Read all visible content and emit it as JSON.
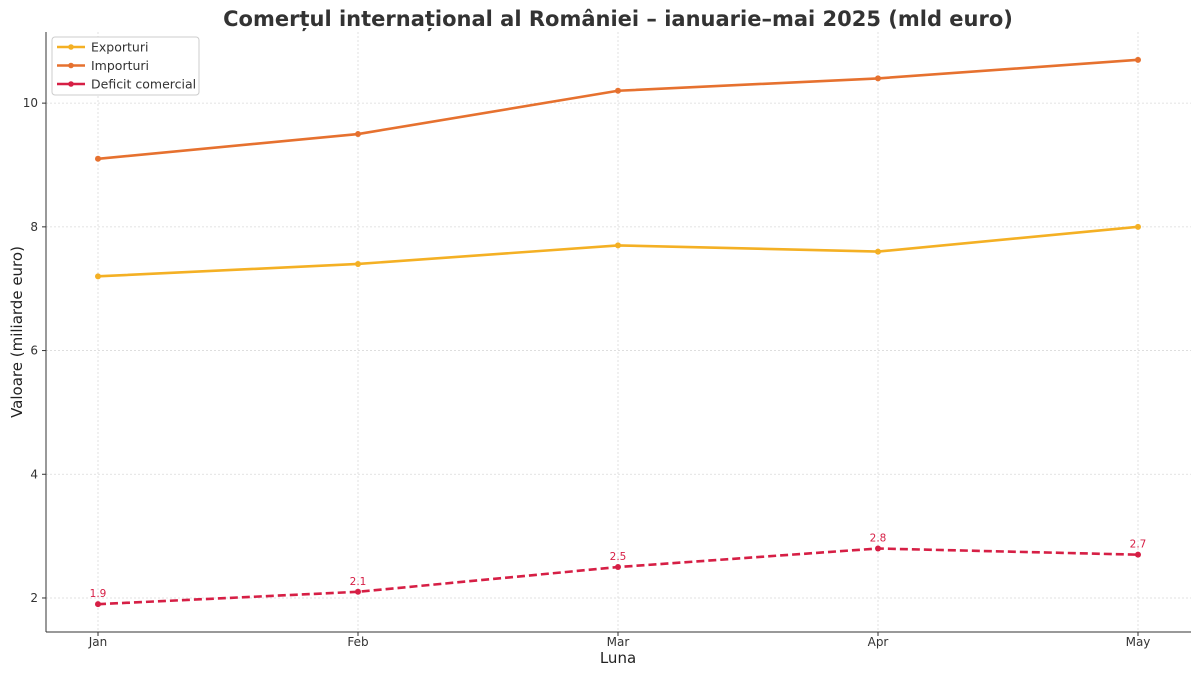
{
  "chart_data": {
    "type": "line",
    "title": "Comerțul internațional al României – ianuarie–mai 2025 (mld euro)",
    "xlabel": "Luna",
    "ylabel": "Valoare (miliarde euro)",
    "categories": [
      "Jan",
      "Feb",
      "Mar",
      "Apr",
      "May"
    ],
    "ylim": [
      1.45,
      11.15
    ],
    "yticks": [
      2,
      4,
      6,
      8,
      10
    ],
    "grid": true,
    "legend_position": "top-left",
    "series": [
      {
        "name": "Exporturi",
        "values": [
          7.2,
          7.4,
          7.7,
          7.6,
          8.0
        ],
        "color": "#f4b024",
        "dashed": false,
        "labels": false
      },
      {
        "name": "Importuri",
        "values": [
          9.1,
          9.5,
          10.2,
          10.4,
          10.7
        ],
        "color": "#e6712f",
        "dashed": false,
        "labels": false
      },
      {
        "name": "Deficit comercial",
        "values": [
          1.9,
          2.1,
          2.5,
          2.8,
          2.7
        ],
        "color": "#d61f45",
        "dashed": true,
        "labels": true
      }
    ]
  }
}
